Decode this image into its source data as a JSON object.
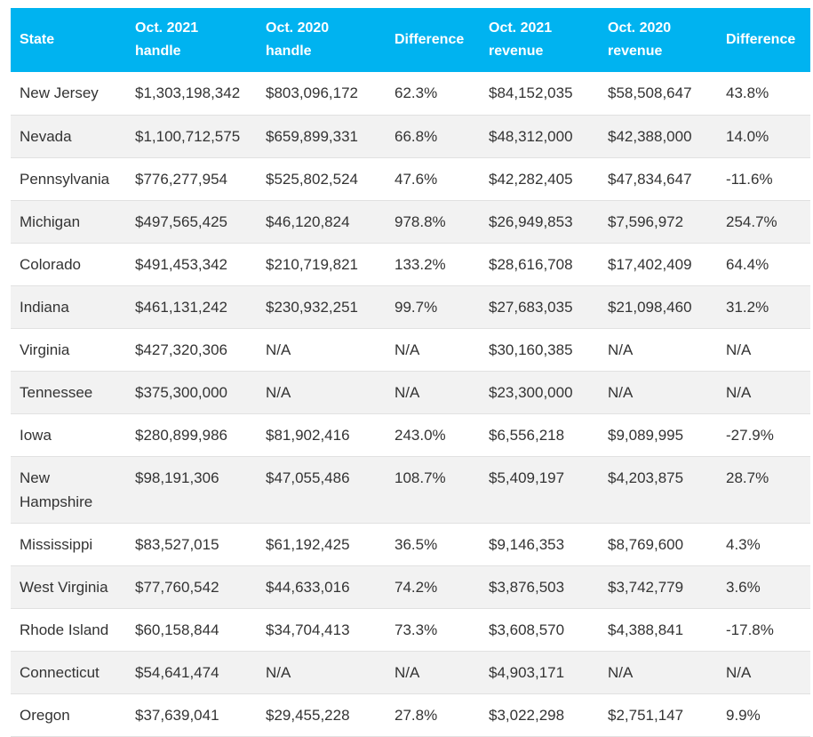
{
  "table": {
    "headers": [
      "State",
      "Oct. 2021 handle",
      "Oct. 2020 handle",
      "Difference",
      "Oct. 2021 revenue",
      "Oct. 2020 revenue",
      "Difference"
    ],
    "rows": [
      [
        "New Jersey",
        "$1,303,198,342",
        "$803,096,172",
        "62.3%",
        "$84,152,035",
        "$58,508,647",
        "43.8%"
      ],
      [
        "Nevada",
        "$1,100,712,575",
        "$659,899,331",
        "66.8%",
        "$48,312,000",
        "$42,388,000",
        "14.0%"
      ],
      [
        "Pennsylvania",
        "$776,277,954",
        "$525,802,524",
        "47.6%",
        "$42,282,405",
        "$47,834,647",
        "-11.6%"
      ],
      [
        "Michigan",
        "$497,565,425",
        "$46,120,824",
        "978.8%",
        "$26,949,853",
        "$7,596,972",
        "254.7%"
      ],
      [
        "Colorado",
        "$491,453,342",
        "$210,719,821",
        "133.2%",
        "$28,616,708",
        "$17,402,409",
        "64.4%"
      ],
      [
        "Indiana",
        "$461,131,242",
        "$230,932,251",
        "99.7%",
        "$27,683,035",
        "$21,098,460",
        "31.2%"
      ],
      [
        "Virginia",
        "$427,320,306",
        "N/A",
        "N/A",
        "$30,160,385",
        "N/A",
        "N/A"
      ],
      [
        "Tennessee",
        "$375,300,000",
        "N/A",
        "N/A",
        "$23,300,000",
        "N/A",
        "N/A"
      ],
      [
        "Iowa",
        "$280,899,986",
        "$81,902,416",
        "243.0%",
        "$6,556,218",
        "$9,089,995",
        "-27.9%"
      ],
      [
        "New Hampshire",
        "$98,191,306",
        "$47,055,486",
        "108.7%",
        "$5,409,197",
        "$4,203,875",
        "28.7%"
      ],
      [
        "Mississippi",
        "$83,527,015",
        "$61,192,425",
        "36.5%",
        "$9,146,353",
        "$8,769,600",
        "4.3%"
      ],
      [
        "West Virginia",
        "$77,760,542",
        "$44,633,016",
        "74.2%",
        "$3,876,503",
        "$3,742,779",
        "3.6%"
      ],
      [
        "Rhode Island",
        "$60,158,844",
        "$34,704,413",
        "73.3%",
        "$3,608,570",
        "$4,388,841",
        "-17.8%"
      ],
      [
        "Connecticut",
        "$54,641,474",
        "N/A",
        "N/A",
        "$4,903,171",
        "N/A",
        "N/A"
      ],
      [
        "Oregon",
        "$37,639,041",
        "$29,455,228",
        "27.8%",
        "$3,022,298",
        "$2,751,147",
        "9.9%"
      ]
    ]
  },
  "colors": {
    "header_bg": "#00b3f0",
    "header_text": "#ffffff",
    "row_alt_bg": "#f2f2f2",
    "text": "#333333"
  }
}
